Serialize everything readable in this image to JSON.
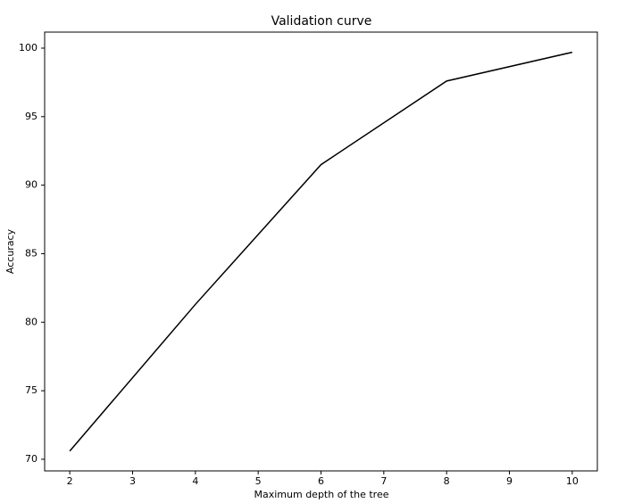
{
  "chart_data": {
    "type": "line",
    "title": "Validation curve",
    "x_label": "Maximum depth of the tree",
    "y_label": "Accuracy",
    "x": [
      2,
      4,
      6,
      8,
      10
    ],
    "series": [
      {
        "name": "Accuracy",
        "color": "#000000",
        "values": [
          70.6,
          81.3,
          91.5,
          97.6,
          99.7
        ]
      }
    ],
    "xlim": [
      1.6,
      10.4
    ],
    "xticks": [
      2,
      3,
      4,
      5,
      6,
      7,
      8,
      9,
      10
    ],
    "ylim": [
      69.15,
      101.17
    ],
    "yticks": [
      70,
      75,
      80,
      85,
      90,
      95,
      100
    ],
    "grid": false
  }
}
